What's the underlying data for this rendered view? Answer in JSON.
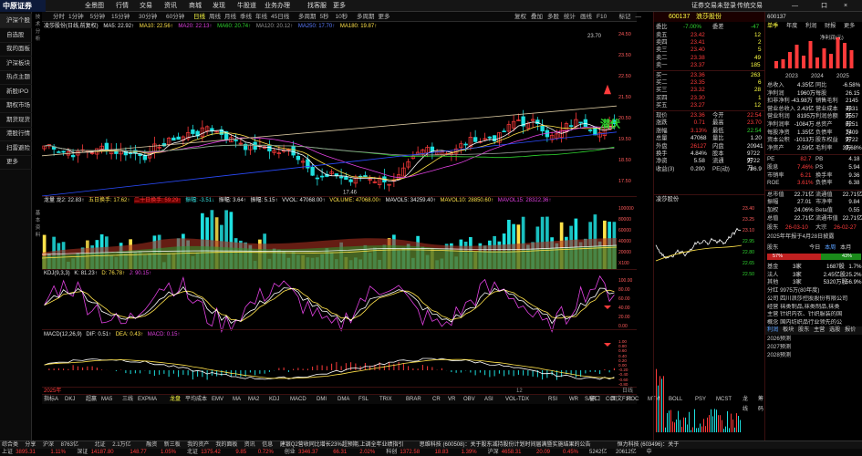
{
  "logo": "中原证券",
  "menu": [
    "全景图",
    "行情",
    "交易",
    "资讯",
    "商城",
    "发现",
    "牛股道",
    "业务办理",
    "找客服",
    "更多"
  ],
  "topright": [
    "证券交易未登录",
    "传统交易",
    "—",
    "口",
    "×"
  ],
  "left_nav": [
    "沪深个股",
    "自选股",
    "我的面板",
    "沪深板块",
    "热点主题",
    "新股IPO",
    "期权市场",
    "期货现货",
    "港股行情",
    "扫雷避险",
    "更多"
  ],
  "timeframes": [
    "分时",
    "1分钟",
    "5分钟",
    "15分钟",
    "30分钟",
    "60分钟",
    "日线",
    "周线",
    "月线",
    "季线",
    "年线",
    "45日线",
    "多周期",
    "5秒",
    "10秒",
    "多周期",
    "更多"
  ],
  "timeframes_right": [
    "复权",
    "叠加",
    "多股",
    "统计",
    "画线",
    "F10",
    "标记",
    "—"
  ],
  "main_header": {
    "title": "凌莎股份(日线,前复权)",
    "ma5": "MA5: 22.92↑",
    "ma10": "MA10: 22.56↑",
    "ma20": "MA20: 22.13↑",
    "ma60": "MA60: 20.74↑",
    "ma120": "MA120: 20.12↑",
    "ma250": "MA250: 17.70↑",
    "ma180": "MA180: 19.87↑"
  },
  "price_axis": [
    "24.50",
    "23.50",
    "22.50",
    "21.50",
    "20.50",
    "19.50",
    "18.50",
    "17.50"
  ],
  "annotations": {
    "high": "23.70",
    "low": "17.46",
    "tag": "潜伏"
  },
  "vol_header": {
    "label": "龙量 龙2: 22.83↑",
    "a": "五日换手: 17.62↑",
    "b": "二十日换手: 59.29↑",
    "c": "振幅: -3.51↓",
    "d": "振幅: 3.64↑",
    "e": "振幅: 5.15↑",
    "f": "VVOL: 47068.00↑",
    "g": "VOLUME: 47068.00↑",
    "h": "MAVOL5: 34259.40↑",
    "i": "MAVOL10: 28850.60↑",
    "j": "MAVOL15: 28322.36↑"
  },
  "vol_axis": [
    "100000",
    "80000",
    "60000",
    "40000",
    "20000",
    "X100"
  ],
  "kdj_header": {
    "label": "KDJ(9,3,3)",
    "k": "K: 81.23↑",
    "d": "D: 76.78↑",
    "j": "J: 90.15↑"
  },
  "kdj_axis": [
    "100.00",
    "80.00",
    "60.00",
    "40.00",
    "20.00",
    "0.00"
  ],
  "macd_header": {
    "label": "MACD(12,26,9)",
    "dif": "DIF: 0.51↑",
    "dea": "DEA: 0.43↑",
    "macd": "MACD: 0.15↑"
  },
  "macd_axis": [
    "1.00",
    "0.80",
    "0.60",
    "0.40",
    "0.20",
    "0.00",
    "-0.20",
    "-0.40",
    "-0.60",
    "-0.80"
  ],
  "date_row": {
    "left": "2025年",
    "right": "12",
    "far": "日线"
  },
  "indicators": [
    "指标A",
    "DKJ",
    "超赢",
    "MA5",
    "三线",
    "EXPMA",
    "龙盘",
    "平均成本",
    "EMV",
    "MA",
    "MA2",
    "KDJ",
    "MACD",
    "DMI",
    "DMA",
    "FSL",
    "TRIX",
    "BRAR",
    "CR",
    "VR",
    "OBV",
    "ASI",
    "VOL-TDX",
    "RSI",
    "WR",
    "SAR",
    "CCI",
    "ROC",
    "MTM",
    "BOLL",
    "PSY",
    "MCST",
    "龙线",
    "筹码"
  ],
  "indicators_right": [
    "窗口",
    "图文F10"
  ],
  "quote": {
    "code": "600137",
    "name": "浪莎股份",
    "webi": "委比",
    "webi_v": "-7.00%",
    "weicha": "委差",
    "weicha_v": "-47",
    "asks": [
      {
        "l": "卖五",
        "p": "23.42",
        "v": "12"
      },
      {
        "l": "卖四",
        "p": "23.41",
        "v": "2"
      },
      {
        "l": "卖三",
        "p": "23.40",
        "v": "5"
      },
      {
        "l": "卖二",
        "p": "23.38",
        "v": "49"
      },
      {
        "l": "卖一",
        "p": "23.37",
        "v": "185"
      }
    ],
    "bids": [
      {
        "l": "买一",
        "p": "23.36",
        "v": "263"
      },
      {
        "l": "买二",
        "p": "23.35",
        "v": "6"
      },
      {
        "l": "买三",
        "p": "23.32",
        "v": "28"
      },
      {
        "l": "买四",
        "p": "23.30",
        "v": "1"
      },
      {
        "l": "买五",
        "p": "23.27",
        "v": "12"
      }
    ],
    "stats": [
      {
        "a": "现价",
        "av": "23.36",
        "b": "今开",
        "bv": "22.54"
      },
      {
        "a": "涨跌",
        "av": "0.71",
        "b": "最高",
        "bv": "23.70"
      },
      {
        "a": "涨幅",
        "av": "3.13%",
        "b": "最低",
        "bv": "22.54"
      },
      {
        "a": "总量",
        "av": "47068",
        "b": "量比",
        "bv": "1.20"
      },
      {
        "a": "外盘",
        "av": "26127",
        "b": "内盘",
        "bv": "20941"
      },
      {
        "a": "换手",
        "av": "4.84%",
        "b": "股本",
        "bv": "9722万"
      },
      {
        "a": "净资",
        "av": "5.58",
        "b": "流通",
        "bv": "9722万"
      },
      {
        "a": "收益(3)",
        "av": "0.200",
        "b": "PE(动)",
        "bv": "86.9"
      }
    ],
    "mini_title": "凌莎股份",
    "mini_axis": [
      "23.40",
      "23.25",
      "23.10",
      "22.95",
      "22.80",
      "22.65",
      "22.50"
    ]
  },
  "side": {
    "code": "600137",
    "tabs": [
      "单季",
      "年度",
      "利润",
      "财报",
      "更多"
    ],
    "chart_label": "净利润(元)",
    "years": [
      "2023",
      "2024",
      "2025"
    ],
    "rows": [
      {
        "a": "总收入",
        "b": "4.35亿",
        "c": "同比",
        "d": "-6.58%"
      },
      {
        "a": "净利润",
        "b": "1960万",
        "c": "每股",
        "d": "26.15"
      },
      {
        "a": "扣非净利",
        "b": "-43.98万",
        "c": "销售毛利",
        "d": "2145万"
      },
      {
        "a": "营业总收入",
        "b": "2.43亿",
        "c": "营业成本",
        "d": "4331万"
      },
      {
        "a": "营业利润",
        "b": "8195万",
        "c": "利润总额",
        "d": "9557万"
      },
      {
        "a": "净利润率",
        "b": "-1084万",
        "c": "总资产",
        "d": "6251万"
      },
      {
        "a": "每股净资",
        "b": "1.35亿",
        "c": "负债率",
        "d": "1409万"
      },
      {
        "a": "资本公积",
        "b": "-1013万",
        "c": "股东权益",
        "d": "9722万"
      },
      {
        "a": "净资产",
        "b": "2.59亿",
        "c": "毛利率",
        "d": "39.68%"
      }
    ],
    "pe": [
      {
        "a": "PE",
        "b": "82.7",
        "c": "PB",
        "d": "4.18"
      },
      {
        "a": "股息",
        "b": "7.46%",
        "c": "PS",
        "d": "5.94"
      },
      {
        "a": "市销率",
        "b": "6.21",
        "c": "换手率",
        "d": "9.36"
      },
      {
        "a": "ROE",
        "b": "3.61%",
        "c": "负债率",
        "d": "6.38"
      }
    ],
    "turnover": [
      {
        "a": "总市值",
        "b": "22.71亿",
        "c": "流通值",
        "d": "22.71亿"
      },
      {
        "a": "振幅",
        "b": "27.01",
        "c": "市净率",
        "d": "9.84"
      },
      {
        "a": "加权",
        "b": "24.06%",
        "c": "Beta值",
        "d": "0.55"
      },
      {
        "a": "总值",
        "b": "22.71亿",
        "c": "流通市值",
        "d": "22.71亿"
      }
    ],
    "dates": {
      "a": "股东",
      "b": "26-03-10",
      "c": "大宗",
      "d": "26-02-27"
    },
    "report": "2025年年报于4月28日披露",
    "fav": "股东",
    "fav_tabs": [
      "今日",
      "本周",
      "本月"
    ],
    "bar": {
      "left": "57%",
      "right": "43%",
      "ratio": 0.57
    },
    "holders": [
      {
        "a": "基金",
        "b": "3家",
        "c": "1687股",
        "d": "1.7%"
      },
      {
        "a": "法人",
        "b": "3家",
        "c": "2.45亿股",
        "d": "25.2%"
      },
      {
        "a": "其他",
        "b": "3家",
        "c": "5320万股",
        "d": "56.9%"
      }
    ],
    "board": "分红 9975万(80年度)",
    "biz": [
      "公司 四川浪莎控股股份有限公司",
      "经营 袜类制品,袜类制品,袜类",
      "主营 针织内衣、针织服装的国",
      "概念 国内纺织品行业领先的公"
    ],
    "tabs2": [
      "利润",
      "板块",
      "股东",
      "主营",
      "选股",
      "报价"
    ],
    "rev": [
      {
        "y": "2026预测",
        "v": ""
      },
      {
        "y": "2027预测",
        "v": ""
      },
      {
        "y": "2028预测",
        "v": ""
      }
    ]
  },
  "footer1": [
    {
      "t": "综合类",
      "c": "#ccc"
    },
    {
      "t": "分享",
      "c": "#ccc"
    },
    {
      "t": "沪深",
      "c": "#ccc"
    },
    {
      "t": "8763亿",
      "c": "#ccc"
    },
    {
      "t": "北证",
      "c": "#ccc"
    },
    {
      "t": "2.1万亿",
      "c": "#ccc"
    },
    {
      "t": "融资",
      "c": "#ccc"
    },
    {
      "t": "新三板",
      "c": "#ccc"
    },
    {
      "t": "我的资产",
      "c": "#ccc"
    },
    {
      "t": "我的面板",
      "c": "#ccc"
    },
    {
      "t": "资讯",
      "c": "#ccc"
    },
    {
      "t": "信息",
      "c": "#ccc"
    },
    {
      "t": "建银Q2营收同比增长23%超预期,上调全年业绩指引",
      "c": "#ddd"
    },
    {
      "t": "思维科技 (600508)：关于股东减持股份计划时间届满暨实施结果的公告",
      "c": "#ddd"
    },
    {
      "t": "恒力科技 (603496)：关于",
      "c": "#ddd"
    }
  ],
  "footer2": [
    {
      "t": "上证",
      "c": "#ccc"
    },
    {
      "t": "3895.31",
      "c": "#ff3b3b"
    },
    {
      "t": "1.11%",
      "c": "#ff3b3b"
    },
    {
      "t": "深证",
      "c": "#ccc"
    },
    {
      "t": "14187.80",
      "c": "#ff3b3b"
    },
    {
      "t": "148.77",
      "c": "#ff3b3b"
    },
    {
      "t": "1.05%",
      "c": "#ff3b3b"
    },
    {
      "t": "北证",
      "c": "#ccc"
    },
    {
      "t": "1375.42",
      "c": "#ff3b3b"
    },
    {
      "t": "9.85",
      "c": "#ff3b3b"
    },
    {
      "t": "0.72%",
      "c": "#ff3b3b"
    },
    {
      "t": "创业",
      "c": "#ccc"
    },
    {
      "t": "3346.37",
      "c": "#ff3b3b"
    },
    {
      "t": "66.31",
      "c": "#ff3b3b"
    },
    {
      "t": "2.02%",
      "c": "#ff3b3b"
    },
    {
      "t": "科创",
      "c": "#ccc"
    },
    {
      "t": "1372.58",
      "c": "#ff3b3b"
    },
    {
      "t": "18.83",
      "c": "#ff3b3b"
    },
    {
      "t": "1.39%",
      "c": "#ff3b3b"
    },
    {
      "t": "沪深",
      "c": "#ccc"
    },
    {
      "t": "4658.31",
      "c": "#ff3b3b"
    },
    {
      "t": "20.09",
      "c": "#ff3b3b"
    },
    {
      "t": "0.45%",
      "c": "#ff3b3b"
    },
    {
      "t": "5242亿",
      "c": "#ccc"
    },
    {
      "t": "20612亿",
      "c": "#ccc"
    },
    {
      "t": "中",
      "c": "#ccc"
    }
  ],
  "colors": {
    "up": "#ff3b3b",
    "down": "#1ee0e0",
    "ma5": "#ffffff",
    "ma10": "#ffe24a",
    "ma20": "#e040e0",
    "ma60": "#2fd42f",
    "ma120": "#999999",
    "ma250": "#2b4cff"
  }
}
